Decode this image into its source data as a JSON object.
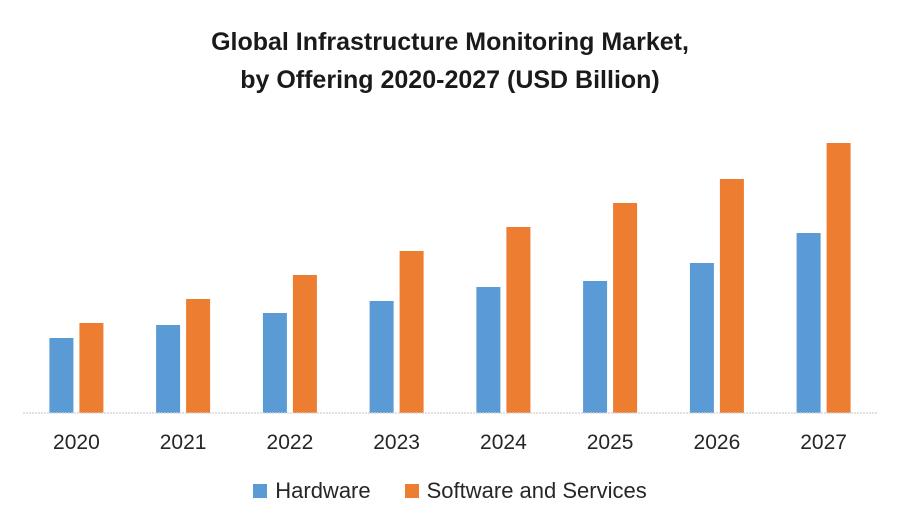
{
  "chart_data": {
    "type": "bar",
    "title_line1": "Global Infrastructure Monitoring  Market,",
    "title_line2": "by Offering 2020-2027 (USD Billion)",
    "xlabel": "",
    "ylabel": "",
    "categories": [
      "2020",
      "2021",
      "2022",
      "2023",
      "2024",
      "2025",
      "2026",
      "2027"
    ],
    "series": [
      {
        "name": "Hardware",
        "color": "#5B9BD5",
        "values": [
          75,
          88,
          100,
          112,
          126,
          132,
          150,
          180
        ]
      },
      {
        "name": "Software and Services",
        "color": "#ED7D31",
        "values": [
          90,
          114,
          138,
          162,
          186,
          210,
          234,
          270
        ]
      }
    ],
    "ylim": [
      0,
      270
    ],
    "value_units": "relative (no axis shown)",
    "grid": false,
    "legend_position": "bottom"
  }
}
